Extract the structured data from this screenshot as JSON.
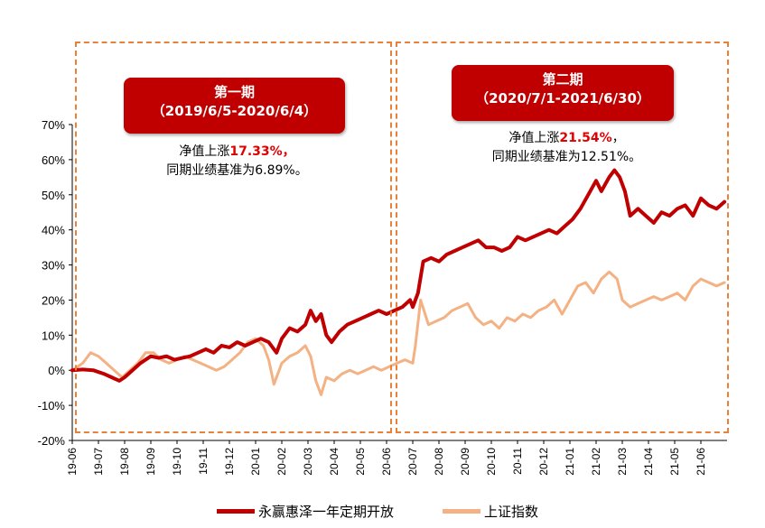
{
  "chart_data": {
    "type": "line",
    "ylim": [
      -20,
      70
    ],
    "yticks": [
      "70%",
      "60%",
      "50%",
      "40%",
      "30%",
      "20%",
      "10%",
      "0%",
      "-10%",
      "-20%"
    ],
    "xticks": [
      "19-06",
      "19-07",
      "19-08",
      "19-09",
      "19-10",
      "19-11",
      "19-12",
      "20-01",
      "20-02",
      "20-03",
      "20-04",
      "20-05",
      "20-06",
      "20-07",
      "20-08",
      "20-09",
      "20-10",
      "20-11",
      "20-12",
      "21-01",
      "21-02",
      "21-03",
      "21-04",
      "21-05",
      "21-06"
    ],
    "series": [
      {
        "name": "永赢惠泽一年定期开放",
        "color": "#c00000",
        "points": [
          [
            0,
            0
          ],
          [
            0.4,
            0.2
          ],
          [
            0.8,
            0
          ],
          [
            1.2,
            -1
          ],
          [
            1.5,
            -2
          ],
          [
            1.8,
            -3
          ],
          [
            2.0,
            -2
          ],
          [
            2.3,
            0
          ],
          [
            2.6,
            2
          ],
          [
            3.0,
            4
          ],
          [
            3.3,
            3.5
          ],
          [
            3.6,
            4
          ],
          [
            3.9,
            3
          ],
          [
            4.2,
            3.5
          ],
          [
            4.5,
            4
          ],
          [
            4.8,
            5
          ],
          [
            5.1,
            6
          ],
          [
            5.4,
            5
          ],
          [
            5.7,
            7
          ],
          [
            6.0,
            6.5
          ],
          [
            6.3,
            8
          ],
          [
            6.6,
            7
          ],
          [
            6.9,
            8
          ],
          [
            7.2,
            9
          ],
          [
            7.5,
            8
          ],
          [
            7.8,
            5
          ],
          [
            8.0,
            9
          ],
          [
            8.3,
            12
          ],
          [
            8.6,
            11
          ],
          [
            8.9,
            13
          ],
          [
            9.1,
            17
          ],
          [
            9.3,
            14
          ],
          [
            9.5,
            16
          ],
          [
            9.7,
            10
          ],
          [
            9.9,
            8
          ],
          [
            10.2,
            11
          ],
          [
            10.5,
            13
          ],
          [
            10.8,
            14
          ],
          [
            11.1,
            15
          ],
          [
            11.4,
            16
          ],
          [
            11.7,
            17
          ],
          [
            12.0,
            16
          ],
          [
            12.3,
            17
          ],
          [
            12.6,
            18
          ],
          [
            12.9,
            20
          ],
          [
            13.0,
            18
          ],
          [
            13.2,
            22
          ],
          [
            13.4,
            31
          ],
          [
            13.7,
            32
          ],
          [
            14.0,
            31
          ],
          [
            14.3,
            33
          ],
          [
            14.6,
            34
          ],
          [
            14.9,
            35
          ],
          [
            15.2,
            36
          ],
          [
            15.5,
            37
          ],
          [
            15.8,
            35
          ],
          [
            16.1,
            35
          ],
          [
            16.4,
            34
          ],
          [
            16.7,
            35
          ],
          [
            17.0,
            38
          ],
          [
            17.3,
            37
          ],
          [
            17.6,
            38
          ],
          [
            17.9,
            39
          ],
          [
            18.2,
            40
          ],
          [
            18.5,
            39
          ],
          [
            18.8,
            41
          ],
          [
            19.1,
            43
          ],
          [
            19.4,
            46
          ],
          [
            19.7,
            50
          ],
          [
            20.0,
            54
          ],
          [
            20.2,
            51
          ],
          [
            20.5,
            55
          ],
          [
            20.7,
            57
          ],
          [
            20.9,
            55
          ],
          [
            21.1,
            51
          ],
          [
            21.3,
            44
          ],
          [
            21.6,
            46
          ],
          [
            21.9,
            44
          ],
          [
            22.2,
            42
          ],
          [
            22.5,
            45
          ],
          [
            22.8,
            44
          ],
          [
            23.1,
            46
          ],
          [
            23.4,
            47
          ],
          [
            23.7,
            44
          ],
          [
            24.0,
            49
          ],
          [
            24.3,
            47
          ],
          [
            24.6,
            46
          ],
          [
            24.9,
            48
          ]
        ]
      },
      {
        "name": "上证指数",
        "color": "#f4b183",
        "points": [
          [
            0,
            0
          ],
          [
            0.4,
            2
          ],
          [
            0.7,
            5
          ],
          [
            1.0,
            4
          ],
          [
            1.3,
            2
          ],
          [
            1.6,
            0
          ],
          [
            1.9,
            -2
          ],
          [
            2.2,
            0
          ],
          [
            2.5,
            2
          ],
          [
            2.8,
            5
          ],
          [
            3.1,
            5
          ],
          [
            3.4,
            3
          ],
          [
            3.7,
            2
          ],
          [
            4.0,
            3
          ],
          [
            4.3,
            4
          ],
          [
            4.6,
            3
          ],
          [
            4.9,
            2
          ],
          [
            5.2,
            1
          ],
          [
            5.5,
            0
          ],
          [
            5.8,
            1
          ],
          [
            6.1,
            3
          ],
          [
            6.4,
            5
          ],
          [
            6.7,
            8
          ],
          [
            7.0,
            9
          ],
          [
            7.3,
            7
          ],
          [
            7.5,
            3
          ],
          [
            7.7,
            -4
          ],
          [
            8.0,
            2
          ],
          [
            8.3,
            4
          ],
          [
            8.6,
            5
          ],
          [
            8.9,
            7
          ],
          [
            9.1,
            4
          ],
          [
            9.3,
            -3
          ],
          [
            9.5,
            -7
          ],
          [
            9.7,
            -2
          ],
          [
            10.0,
            -3
          ],
          [
            10.3,
            -1
          ],
          [
            10.6,
            0
          ],
          [
            10.9,
            -1
          ],
          [
            11.2,
            0
          ],
          [
            11.5,
            1
          ],
          [
            11.8,
            0
          ],
          [
            12.1,
            1
          ],
          [
            12.4,
            2
          ],
          [
            12.7,
            3
          ],
          [
            13.0,
            2
          ],
          [
            13.1,
            7
          ],
          [
            13.3,
            20
          ],
          [
            13.6,
            13
          ],
          [
            13.9,
            14
          ],
          [
            14.2,
            15
          ],
          [
            14.5,
            17
          ],
          [
            14.8,
            18
          ],
          [
            15.1,
            19
          ],
          [
            15.4,
            15
          ],
          [
            15.7,
            13
          ],
          [
            16.0,
            14
          ],
          [
            16.3,
            12
          ],
          [
            16.6,
            15
          ],
          [
            16.9,
            14
          ],
          [
            17.2,
            16
          ],
          [
            17.5,
            15
          ],
          [
            17.8,
            17
          ],
          [
            18.1,
            18
          ],
          [
            18.4,
            20
          ],
          [
            18.7,
            16
          ],
          [
            19.0,
            20
          ],
          [
            19.3,
            24
          ],
          [
            19.6,
            25
          ],
          [
            19.9,
            22
          ],
          [
            20.2,
            26
          ],
          [
            20.5,
            28
          ],
          [
            20.8,
            26
          ],
          [
            21.0,
            20
          ],
          [
            21.3,
            18
          ],
          [
            21.6,
            19
          ],
          [
            21.9,
            20
          ],
          [
            22.2,
            21
          ],
          [
            22.5,
            20
          ],
          [
            22.8,
            21
          ],
          [
            23.1,
            22
          ],
          [
            23.4,
            20
          ],
          [
            23.7,
            24
          ],
          [
            24.0,
            26
          ],
          [
            24.3,
            25
          ],
          [
            24.6,
            24
          ],
          [
            24.9,
            25
          ]
        ]
      }
    ]
  },
  "periods": [
    {
      "title": "第一期",
      "range": "（2019/6/5-2020/6/4）",
      "note_prefix": "净值上涨",
      "note_value": "17.33%，",
      "note_line2": "同期业绩基准为6.89%。"
    },
    {
      "title": "第二期",
      "range": "（2020/7/1-2021/6/30）",
      "note_prefix": "净值上涨",
      "note_value": "21.54%",
      "note_suffix": "，",
      "note_line2": "同期业绩基准为12.51%。"
    }
  ],
  "legend": [
    {
      "label": "永赢惠泽一年定期开放",
      "color": "#c00000"
    },
    {
      "label": "上证指数",
      "color": "#f4b183"
    }
  ]
}
